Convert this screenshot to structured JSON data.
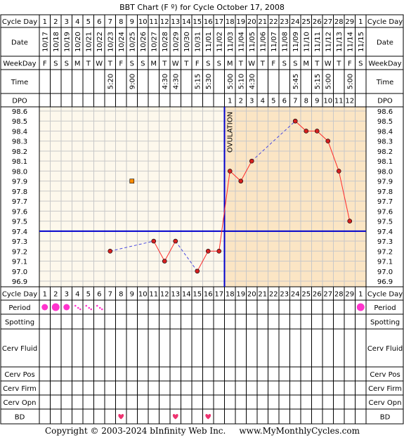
{
  "title": "BBT Chart (F º) for Cycle October 17, 2008",
  "footer": "Copyright © 2003-2024 bInfinity Web Inc.     www.MyMonthlyCycles.com",
  "ovulation_label": "OVULATION",
  "row_labels": {
    "cycle_day": "Cycle Day",
    "date": "Date",
    "weekday": "WeekDay",
    "time": "Time",
    "dpo": "DPO",
    "period": "Period",
    "spotting": "Spotting",
    "cerv_fluid": "Cerv Fluid",
    "cerv_pos": "Cerv Pos",
    "cerv_firm": "Cerv Firm",
    "cerv_opn": "Cerv Opn",
    "bd": "BD"
  },
  "colors": {
    "grid_line": "#c8c8c8",
    "pre_ovulation_bg": "#fdf8ec",
    "post_ovulation_bg": "#fbe5c4",
    "coverline": "#0000cc",
    "ovulation_line": "#0000cc",
    "temp_line": "#ff2a2a",
    "temp_point": "#d42020",
    "dashed_line": "#4a4ae0",
    "period_dot": "#ff33cc",
    "heart": "#ee3370"
  },
  "chart_data": {
    "type": "line",
    "title": "BBT Chart (F º) for Cycle October 17, 2008",
    "cycle_days": [
      "1",
      "2",
      "3",
      "4",
      "5",
      "6",
      "7",
      "8",
      "9",
      "10",
      "11",
      "12",
      "13",
      "14",
      "15",
      "16",
      "17",
      "18",
      "19",
      "20",
      "21",
      "22",
      "23",
      "24",
      "25",
      "26",
      "27",
      "28",
      "29",
      "1"
    ],
    "dates": [
      "10/17",
      "10/18",
      "10/19",
      "10/20",
      "10/21",
      "10/22",
      "10/23",
      "10/24",
      "10/25",
      "10/26",
      "10/27",
      "10/28",
      "10/29",
      "10/30",
      "10/31",
      "11/01",
      "11/02",
      "11/03",
      "11/04",
      "11/05",
      "11/06",
      "11/07",
      "11/08",
      "11/09",
      "11/10",
      "11/11",
      "11/12",
      "11/13",
      "11/14",
      "11/15"
    ],
    "weekdays": [
      "F",
      "S",
      "S",
      "M",
      "T",
      "W",
      "T",
      "F",
      "S",
      "S",
      "M",
      "T",
      "W",
      "T",
      "F",
      "S",
      "S",
      "M",
      "T",
      "W",
      "T",
      "F",
      "S",
      "S",
      "M",
      "T",
      "W",
      "T",
      "F",
      "S"
    ],
    "times": [
      "",
      "",
      "",
      "",
      "",
      "",
      "5:20",
      "",
      "9:00",
      "",
      "",
      "4:30",
      "4:30",
      "",
      "5:15",
      "5:30",
      "",
      "5:00",
      "5:10",
      "4:30",
      "",
      "",
      "",
      "5:45",
      "",
      "5:15",
      "5:00",
      "",
      "5:00",
      ""
    ],
    "dpo": [
      "",
      "",
      "",
      "",
      "",
      "",
      "",
      "",
      "",
      "",
      "",
      "",
      "",
      "",
      "",
      "",
      "",
      "1",
      "2",
      "3",
      "4",
      "5",
      "6",
      "7",
      "8",
      "9",
      "10",
      "11",
      "12",
      ""
    ],
    "y_ticks": [
      "98.6",
      "98.5",
      "98.4",
      "98.3",
      "98.2",
      "98.1",
      "98.0",
      "97.9",
      "97.8",
      "97.7",
      "97.6",
      "97.5",
      "97.4",
      "97.3",
      "97.2",
      "97.1",
      "97.0",
      "96.9"
    ],
    "ylim": [
      96.9,
      98.6
    ],
    "temperatures": [
      {
        "day": 7,
        "temp": 97.2,
        "connect_prev": false
      },
      {
        "day": 11,
        "temp": 97.3,
        "connect_prev": "dashed"
      },
      {
        "day": 12,
        "temp": 97.1,
        "connect_prev": "solid"
      },
      {
        "day": 13,
        "temp": 97.3,
        "connect_prev": "solid"
      },
      {
        "day": 15,
        "temp": 97.0,
        "connect_prev": "dashed"
      },
      {
        "day": 16,
        "temp": 97.2,
        "connect_prev": "solid"
      },
      {
        "day": 17,
        "temp": 97.2,
        "connect_prev": "solid"
      },
      {
        "day": 18,
        "temp": 98.0,
        "connect_prev": "solid"
      },
      {
        "day": 19,
        "temp": 97.9,
        "connect_prev": "solid"
      },
      {
        "day": 20,
        "temp": 98.1,
        "connect_prev": "solid"
      },
      {
        "day": 24,
        "temp": 98.5,
        "connect_prev": "dashed"
      },
      {
        "day": 25,
        "temp": 98.4,
        "connect_prev": "solid"
      },
      {
        "day": 26,
        "temp": 98.4,
        "connect_prev": "solid"
      },
      {
        "day": 27,
        "temp": 98.3,
        "connect_prev": "solid"
      },
      {
        "day": 28,
        "temp": 98.0,
        "connect_prev": "solid"
      },
      {
        "day": 29,
        "temp": 97.5,
        "connect_prev": "solid"
      }
    ],
    "excluded_points": [
      {
        "day": 9,
        "temp": 97.9
      }
    ],
    "coverline": 97.4,
    "ovulation_after_day": 17,
    "period": [
      {
        "day": 1,
        "size": "medium"
      },
      {
        "day": 2,
        "size": "heavy"
      },
      {
        "day": 3,
        "size": "medium"
      },
      {
        "day": 4,
        "size": "spotting"
      },
      {
        "day": 5,
        "size": "spotting"
      },
      {
        "day": 6,
        "size": "spotting"
      },
      {
        "day": 30,
        "size": "heavy"
      }
    ],
    "bd_days": [
      8,
      13,
      16
    ]
  }
}
